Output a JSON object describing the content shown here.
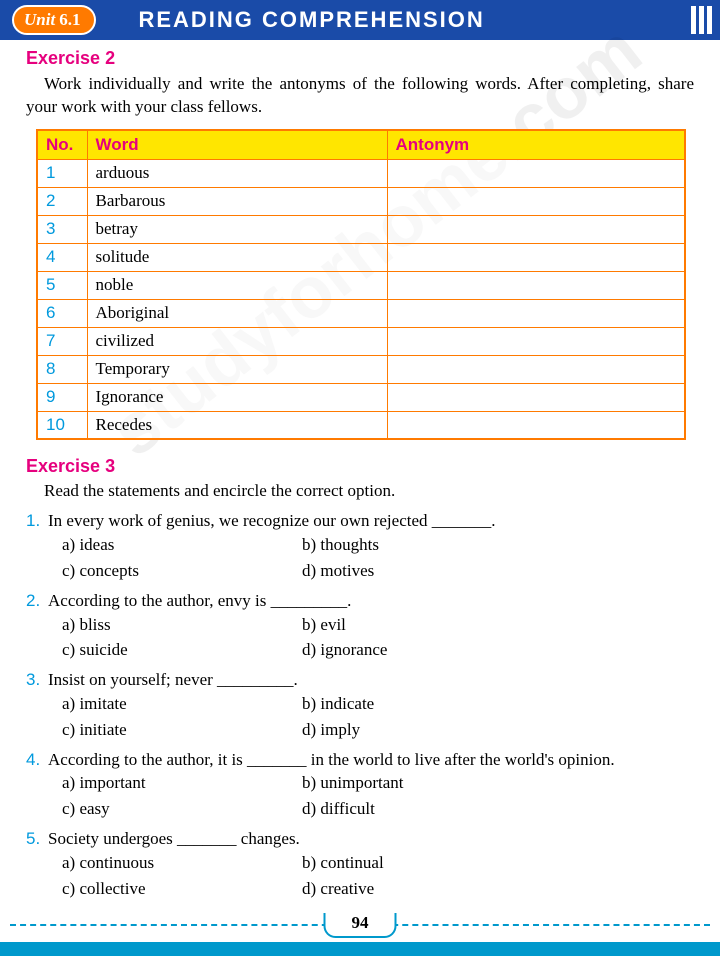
{
  "header": {
    "unit_label": "Unit",
    "unit_number": "6.1",
    "title": "READING COMPREHENSION"
  },
  "watermark": "studyforhome.com",
  "exercise2": {
    "title": "Exercise 2",
    "instructions": "Work individually and write the antonyms of the following words. After completing, share your work with your class fellows.",
    "columns": [
      "No.",
      "Word",
      "Antonym"
    ],
    "rows": [
      {
        "n": "1",
        "word": "arduous",
        "antonym": ""
      },
      {
        "n": "2",
        "word": "Barbarous",
        "antonym": ""
      },
      {
        "n": "3",
        "word": "betray",
        "antonym": ""
      },
      {
        "n": "4",
        "word": "solitude",
        "antonym": ""
      },
      {
        "n": "5",
        "word": "noble",
        "antonym": ""
      },
      {
        "n": "6",
        "word": "Aboriginal",
        "antonym": ""
      },
      {
        "n": "7",
        "word": "civilized",
        "antonym": ""
      },
      {
        "n": "8",
        "word": "Temporary",
        "antonym": ""
      },
      {
        "n": "9",
        "word": "Ignorance",
        "antonym": ""
      },
      {
        "n": "10",
        "word": "Recedes",
        "antonym": ""
      }
    ]
  },
  "exercise3": {
    "title": "Exercise 3",
    "instructions": "Read the statements and encircle the correct option.",
    "questions": [
      {
        "n": "1.",
        "stem": "In every work of genius, we recognize our own rejected _______.",
        "a": "a) ideas",
        "b": "b) thoughts",
        "c": "c) concepts",
        "d": "d) motives"
      },
      {
        "n": "2.",
        "stem": "According to the author, envy is _________.",
        "a": "a) bliss",
        "b": "b) evil",
        "c": "c) suicide",
        "d": "d) ignorance"
      },
      {
        "n": "3.",
        "stem": "Insist on yourself; never _________.",
        "a": "a) imitate",
        "b": "b) indicate",
        "c": "c) initiate",
        "d": "d) imply"
      },
      {
        "n": "4.",
        "stem": "According to the author, it is _______ in the world to live after the world's opinion.",
        "a": "a) important",
        "b": "b) unimportant",
        "c": "c) easy",
        "d": "d) difficult"
      },
      {
        "n": "5.",
        "stem": "Society undergoes _______ changes.",
        "a": "a) continuous",
        "b": "b) continual",
        "c": "c) collective",
        "d": "d) creative"
      }
    ]
  },
  "page_number": "94",
  "colors": {
    "header_bg": "#1a4ba8",
    "unit_bg": "#ff7a00",
    "accent_pink": "#e6007e",
    "table_header_bg": "#ffe600",
    "num_color": "#0099dd",
    "footer_border": "#0099cc"
  }
}
